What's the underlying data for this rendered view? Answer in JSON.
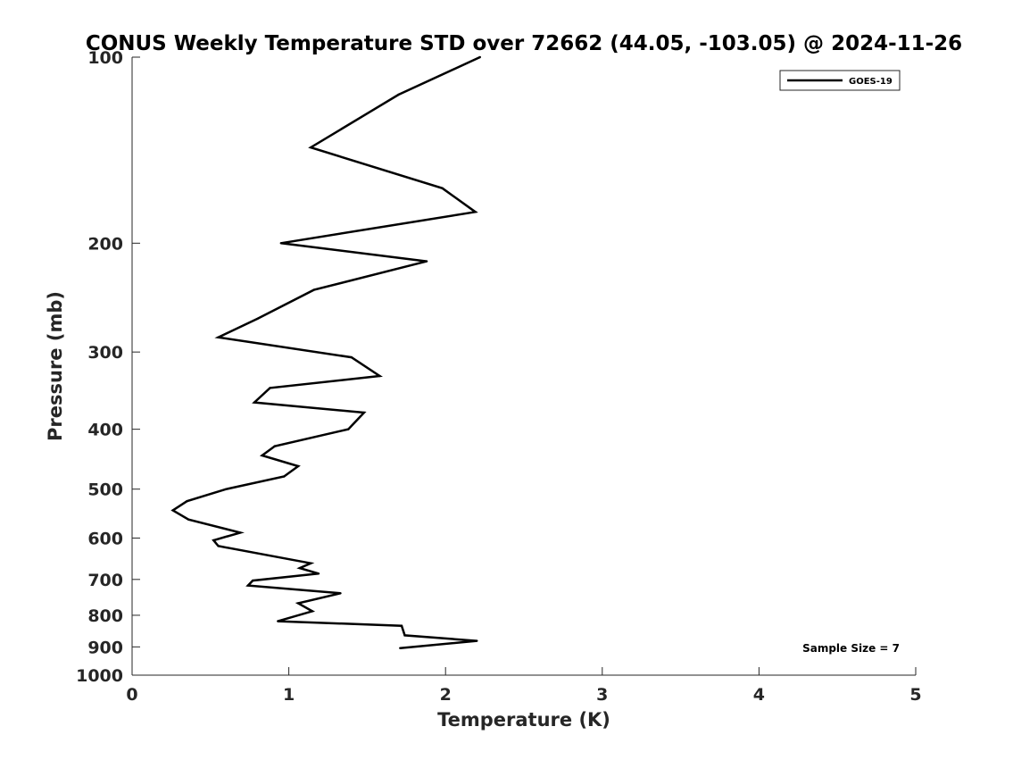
{
  "chart_data": {
    "type": "line",
    "title": "CONUS Weekly Temperature STD over 72662 (44.05, -103.05) @ 2024-11-26",
    "xlabel": "Temperature (K)",
    "ylabel": "Pressure (mb)",
    "xlim": [
      0,
      5
    ],
    "ylim": [
      1000,
      100
    ],
    "yscale": "log",
    "xticks": [
      "0",
      "1",
      "2",
      "3",
      "4",
      "5"
    ],
    "yticks": [
      "100",
      "200",
      "300",
      "400",
      "500",
      "600",
      "700",
      "800",
      "900",
      "1000"
    ],
    "grid": false,
    "legend_position": "top-right",
    "annotation": "Sample Size = 7",
    "series": [
      {
        "name": "GOES-19",
        "color": "#000000",
        "points": [
          [
            2.22,
            100
          ],
          [
            1.7,
            115
          ],
          [
            1.14,
            140
          ],
          [
            1.98,
            163
          ],
          [
            2.19,
            178
          ],
          [
            0.95,
            200
          ],
          [
            1.88,
            214
          ],
          [
            1.16,
            238
          ],
          [
            0.8,
            265
          ],
          [
            0.55,
            284
          ],
          [
            1.4,
            306
          ],
          [
            1.58,
            328
          ],
          [
            0.88,
            343
          ],
          [
            0.78,
            362
          ],
          [
            1.48,
            376
          ],
          [
            1.38,
            400
          ],
          [
            0.91,
            426
          ],
          [
            0.83,
            441
          ],
          [
            1.06,
            459
          ],
          [
            0.97,
            477
          ],
          [
            0.6,
            500
          ],
          [
            0.35,
            523
          ],
          [
            0.26,
            541
          ],
          [
            0.36,
            560
          ],
          [
            0.69,
            588
          ],
          [
            0.52,
            605
          ],
          [
            0.55,
            618
          ],
          [
            1.14,
            659
          ],
          [
            1.07,
            671
          ],
          [
            1.19,
            685
          ],
          [
            0.77,
            703
          ],
          [
            0.74,
            716
          ],
          [
            1.33,
            737
          ],
          [
            1.06,
            765
          ],
          [
            1.15,
            788
          ],
          [
            0.93,
            818
          ],
          [
            1.72,
            832
          ],
          [
            1.74,
            862
          ],
          [
            2.2,
            880
          ],
          [
            1.71,
            904
          ]
        ]
      }
    ]
  }
}
